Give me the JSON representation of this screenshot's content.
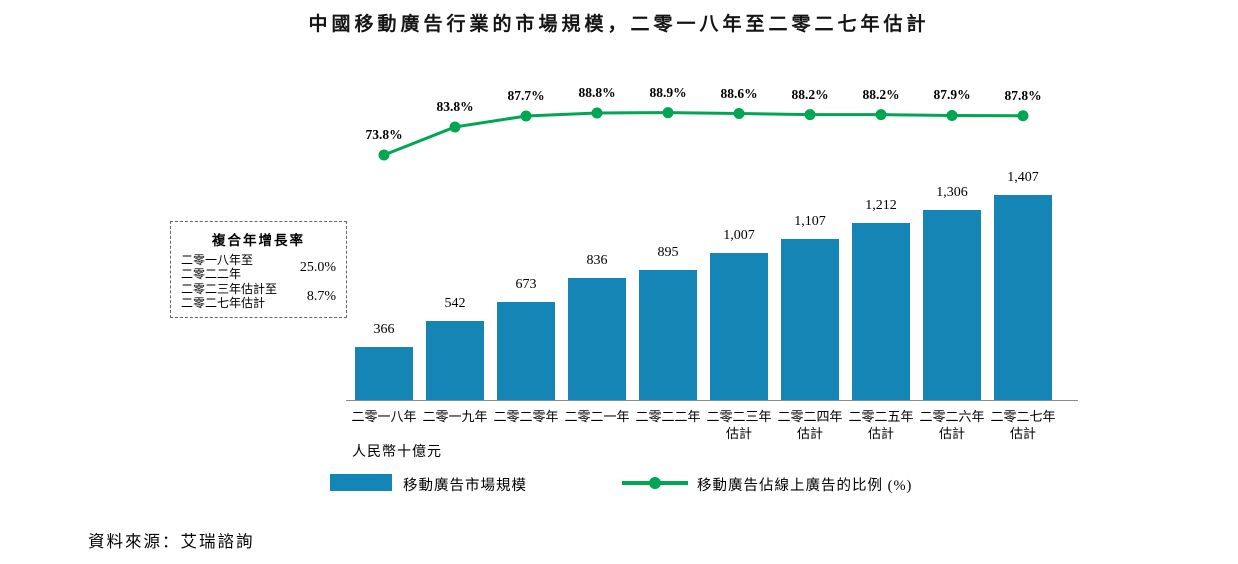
{
  "title": "中國移動廣告行業的市場規模，二零一八年至二零二七年估計",
  "source": "資料來源：艾瑞諮詢",
  "axis_unit": "人民幣十億元",
  "cagr_box": {
    "title": "複合年增長率",
    "rows": [
      {
        "label_line1": "二零一八年至",
        "label_line2": "二零二二年",
        "value": "25.0%"
      },
      {
        "label_line1": "二零二三年估計至",
        "label_line2": "二零二七年估計",
        "value": "8.7%"
      }
    ]
  },
  "legend": [
    {
      "swatch": "bar",
      "label": "移動廣告市場規模",
      "color": "#1585b5"
    },
    {
      "swatch": "line",
      "label": "移動廣告佔線上廣告的比例 (%)",
      "color": "#00a651"
    }
  ],
  "chart_data": {
    "type": "bar+line",
    "title": "中國移動廣告行業的市場規模，二零一八年至二零二七年估計",
    "categories": [
      [
        "二零一八年"
      ],
      [
        "二零一九年"
      ],
      [
        "二零二零年"
      ],
      [
        "二零二一年"
      ],
      [
        "二零二二年"
      ],
      [
        "二零二三年",
        "估計"
      ],
      [
        "二零二四年",
        "估計"
      ],
      [
        "二零二五年",
        "估計"
      ],
      [
        "二零二六年",
        "估計"
      ],
      [
        "二零二七年",
        "估計"
      ]
    ],
    "series": [
      {
        "name": "移動廣告市場規模",
        "type": "bar",
        "values": [
          366,
          542,
          673,
          836,
          895,
          1007,
          1107,
          1212,
          1306,
          1407
        ],
        "labels": [
          "366",
          "542",
          "673",
          "836",
          "895",
          "1,007",
          "1,107",
          "1,212",
          "1,306",
          "1,407"
        ],
        "color": "#1585b5"
      },
      {
        "name": "移動廣告佔線上廣告的比例 (%)",
        "type": "line",
        "values": [
          73.8,
          83.8,
          87.7,
          88.8,
          88.9,
          88.6,
          88.2,
          88.2,
          87.9,
          87.8
        ],
        "labels": [
          "73.8%",
          "83.8%",
          "87.7%",
          "88.8%",
          "88.9%",
          "88.6%",
          "88.2%",
          "88.2%",
          "87.9%",
          "87.8%"
        ],
        "color": "#00a651"
      }
    ],
    "ylabel": "人民幣十億元",
    "grid": false,
    "legend_position": "bottom",
    "annotations": [
      {
        "label": "複合年增長率 二零一八年至二零二二年",
        "value": "25.0%"
      },
      {
        "label": "複合年增長率 二零二三年估計至二零二七年估計",
        "value": "8.7%"
      }
    ]
  }
}
